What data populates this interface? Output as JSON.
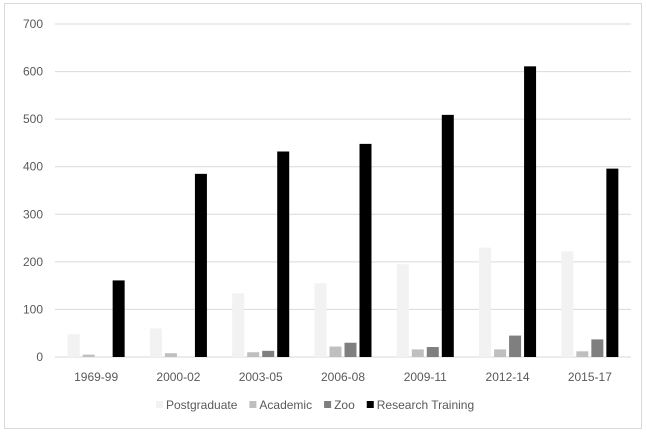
{
  "chart_data": {
    "type": "bar",
    "title": "",
    "xlabel": "",
    "ylabel": "",
    "ylim": [
      0,
      700
    ],
    "yticks": [
      0,
      100,
      200,
      300,
      400,
      500,
      600,
      700
    ],
    "grid": true,
    "legend_position": "bottom",
    "categories": [
      "1969-99",
      "2000-02",
      "2003-05",
      "2006-08",
      "2009-11",
      "2012-14",
      "2015-17"
    ],
    "series": [
      {
        "name": "Postgraduate",
        "color": "#f2f2f2",
        "values": [
          48,
          60,
          134,
          155,
          195,
          230,
          222
        ]
      },
      {
        "name": "Academic",
        "color": "#bfbfbf",
        "values": [
          5,
          8,
          10,
          22,
          16,
          16,
          12
        ]
      },
      {
        "name": "Zoo",
        "color": "#7f7f7f",
        "values": [
          0,
          0,
          13,
          30,
          21,
          45,
          37
        ]
      },
      {
        "name": "Research Training",
        "color": "#000000",
        "values": [
          161,
          385,
          432,
          448,
          509,
          611,
          396
        ]
      }
    ]
  }
}
